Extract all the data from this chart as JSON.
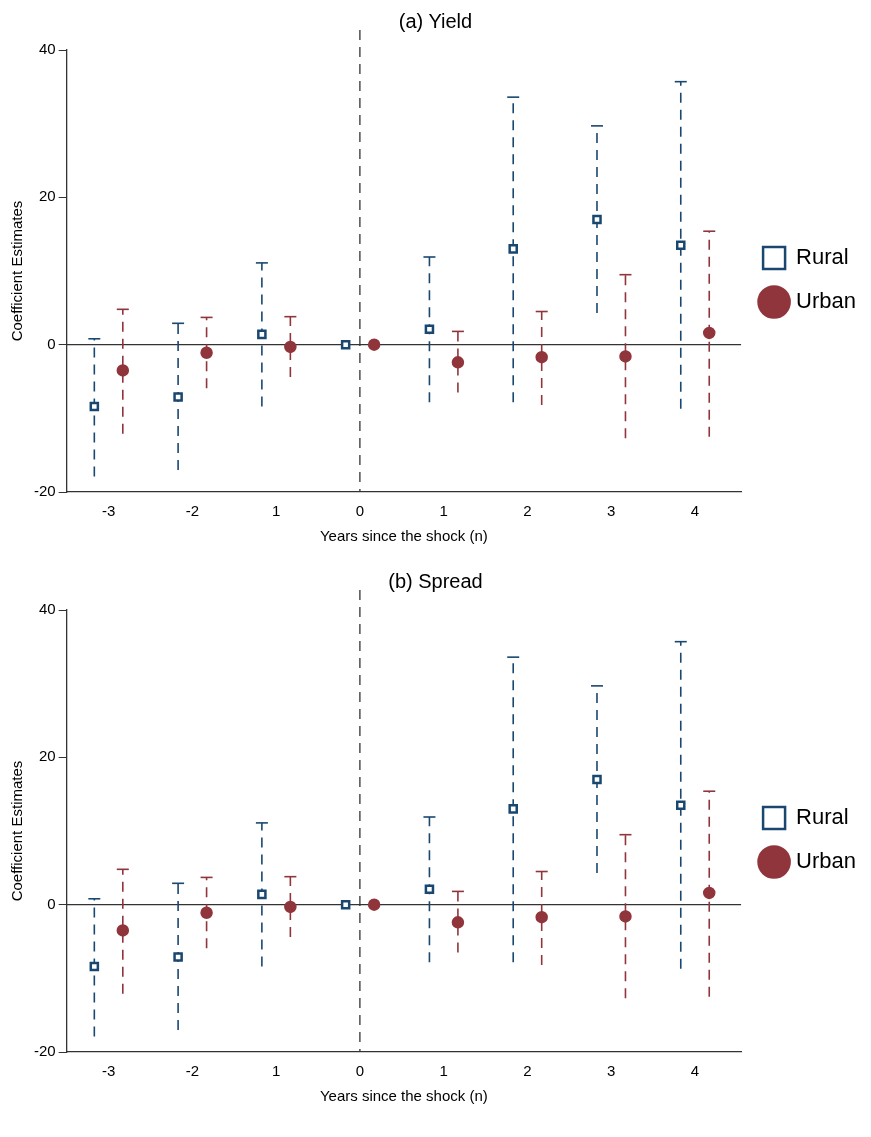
{
  "chart_data": [
    {
      "type": "scatter",
      "title": "(a) Yield",
      "xlabel": "Years since the shock (n)",
      "ylabel": "Coefficient Estimates",
      "categories": [
        "-3",
        "-2",
        "1",
        "0",
        "1",
        "2",
        "3",
        "4"
      ],
      "ylim": [
        -20,
        40
      ],
      "yticks": [
        -20,
        0,
        20,
        40
      ],
      "grid": false,
      "legend": "right",
      "line_style": "dashed",
      "ref_lines": [
        {
          "axis": "y",
          "value": 0,
          "line_style": "solid",
          "color": "#333333"
        },
        {
          "axis": "x",
          "value": "0",
          "line_style": "dashed",
          "color": "#333333"
        }
      ],
      "series": [
        {
          "name": "Rural",
          "color": "#1a476f",
          "marker": "square",
          "values": [
            -8.4,
            -7.1,
            1.4,
            0,
            2.1,
            13,
            17,
            13.5
          ],
          "errors": [
            [
              -17.9,
              0.8
            ],
            [
              -17,
              2.9
            ],
            [
              -8.4,
              11.1
            ],
            null,
            [
              -7.8,
              11.9
            ],
            [
              -7.8,
              33.6
            ],
            [
              4.3,
              29.7
            ],
            [
              -8.7,
              35.7
            ]
          ]
        },
        {
          "name": "Urban",
          "color": "#90353b",
          "marker": "circle",
          "values": [
            -3.5,
            -1.1,
            -0.3,
            0,
            -2.4,
            -1.7,
            -1.6,
            1.6
          ],
          "errors": [
            [
              -12.1,
              4.8
            ],
            [
              -5.9,
              3.7
            ],
            [
              -4.4,
              3.8
            ],
            null,
            [
              -6.5,
              1.8
            ],
            [
              -8.2,
              4.5
            ],
            [
              -12.7,
              9.5
            ],
            [
              -12.5,
              15.4
            ]
          ]
        }
      ]
    },
    {
      "type": "scatter",
      "title": "(b) Spread",
      "xlabel": "Years since the shock (n)",
      "ylabel": "Coefficient Estimates",
      "categories": [
        "-3",
        "-2",
        "1",
        "0",
        "1",
        "2",
        "3",
        "4"
      ],
      "ylim": [
        -20,
        40
      ],
      "yticks": [
        -20,
        0,
        20,
        40
      ],
      "grid": false,
      "legend": "right",
      "line_style": "dashed",
      "ref_lines": [
        {
          "axis": "y",
          "value": 0,
          "line_style": "solid",
          "color": "#333333"
        },
        {
          "axis": "x",
          "value": "0",
          "line_style": "dashed",
          "color": "#333333"
        }
      ],
      "series": [
        {
          "name": "Rural",
          "color": "#1a476f",
          "marker": "square",
          "values": [
            -8.4,
            -7.1,
            1.4,
            0,
            2.1,
            13,
            17,
            13.5
          ],
          "errors": [
            [
              -17.9,
              0.8
            ],
            [
              -17,
              2.9
            ],
            [
              -8.4,
              11.1
            ],
            null,
            [
              -7.8,
              11.9
            ],
            [
              -7.8,
              33.6
            ],
            [
              4.3,
              29.7
            ],
            [
              -8.7,
              35.7
            ]
          ]
        },
        {
          "name": "Urban",
          "color": "#90353b",
          "marker": "circle",
          "values": [
            -3.5,
            -1.1,
            -0.3,
            0,
            -2.4,
            -1.7,
            -1.6,
            1.6
          ],
          "errors": [
            [
              -12.1,
              4.8
            ],
            [
              -5.9,
              3.7
            ],
            [
              -4.4,
              3.8
            ],
            null,
            [
              -6.5,
              1.8
            ],
            [
              -8.2,
              4.5
            ],
            [
              -12.7,
              9.5
            ],
            [
              -12.5,
              15.4
            ]
          ]
        }
      ]
    }
  ]
}
